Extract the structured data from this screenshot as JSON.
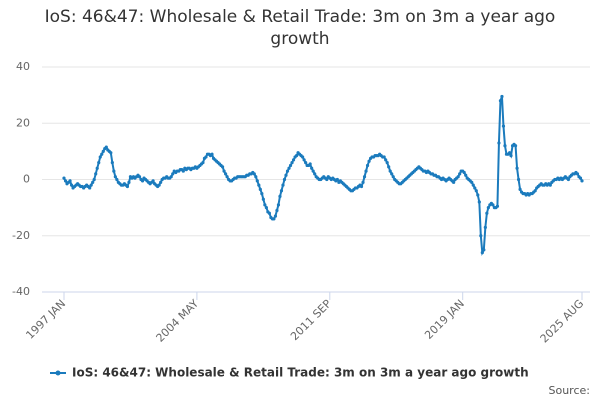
{
  "chart_data": {
    "type": "line",
    "title": "IoS: 46&47: Wholesale & Retail Trade: 3m on 3m a year ago growth",
    "categories": [
      "1997 JAN",
      null,
      null,
      null,
      null,
      null,
      null,
      null,
      null,
      null,
      null,
      null,
      null,
      null,
      null,
      null,
      null,
      null,
      null,
      null,
      null,
      null,
      null,
      null,
      null,
      null,
      null,
      null,
      null,
      null,
      null,
      null,
      null,
      null,
      null,
      null,
      null,
      null,
      null,
      null,
      null,
      null,
      null,
      null,
      null,
      null,
      null,
      null,
      null,
      null,
      null,
      null,
      null,
      null,
      null,
      null,
      null,
      null,
      null,
      null,
      null,
      null,
      null,
      null,
      null,
      null,
      null,
      null,
      null,
      null,
      null,
      null,
      null,
      null,
      null,
      null,
      null,
      null,
      null,
      null,
      null,
      null,
      null,
      null,
      null,
      null,
      null,
      null,
      "2004 MAY",
      null,
      null,
      null,
      null,
      null,
      null,
      null,
      null,
      null,
      null,
      null,
      null,
      null,
      null,
      null,
      null,
      null,
      null,
      null,
      null,
      null,
      null,
      null,
      null,
      null,
      null,
      null,
      null,
      null,
      null,
      null,
      null,
      null,
      null,
      null,
      null,
      null,
      null,
      null,
      null,
      null,
      null,
      null,
      null,
      null,
      null,
      null,
      null,
      null,
      null,
      null,
      null,
      null,
      null,
      null,
      null,
      null,
      null,
      null,
      null,
      null,
      null,
      null,
      null,
      null,
      null,
      null,
      null,
      null,
      null,
      null,
      null,
      null,
      null,
      null,
      null,
      null,
      null,
      null,
      null,
      null,
      null,
      null,
      null,
      null,
      null,
      null,
      "2011 SEP",
      null,
      null,
      null,
      null,
      null,
      null,
      null,
      null,
      null,
      null,
      null,
      null,
      null,
      null,
      null,
      null,
      null,
      null,
      null,
      null,
      null,
      null,
      null,
      null,
      null,
      null,
      null,
      null,
      null,
      null,
      null,
      null,
      null,
      null,
      null,
      null,
      null,
      null,
      null,
      null,
      null,
      null,
      null,
      null,
      null,
      null,
      null,
      null,
      null,
      null,
      null,
      null,
      null,
      null,
      null,
      null,
      null,
      null,
      null,
      null,
      null,
      null,
      null,
      null,
      null,
      null,
      null,
      null,
      null,
      null,
      null,
      null,
      null,
      null,
      null,
      null,
      null,
      null,
      null,
      null,
      null,
      null,
      null,
      null,
      null,
      null,
      null,
      "2019 JAN",
      null,
      null,
      null,
      null,
      null,
      null,
      null,
      null,
      null,
      null,
      null,
      null,
      null,
      null,
      null,
      null,
      null,
      null,
      null,
      null,
      null,
      null,
      null,
      null,
      null,
      null,
      null,
      null,
      null,
      null,
      null,
      null,
      null,
      null,
      null,
      null,
      null,
      null,
      null,
      null,
      null,
      null,
      null,
      null,
      null,
      null,
      null,
      null,
      null,
      null,
      null,
      null,
      null,
      null,
      null,
      null,
      null,
      null,
      null,
      null,
      null,
      null,
      null,
      null,
      null,
      null,
      null,
      null,
      null,
      null,
      null,
      null,
      null,
      null,
      null,
      null,
      null,
      null,
      "2025 AUG"
    ],
    "series": [
      {
        "name": "IoS: 46&47: Wholesale & Retail Trade: 3m on 3m a year ago growth",
        "color": "#1b7bbd",
        "values": [
          0.5,
          -0.5,
          -1.5,
          -1,
          -0.5,
          -2,
          -3,
          -2.5,
          -2,
          -1.5,
          -2,
          -2.5,
          -2.5,
          -3,
          -2.5,
          -2,
          -2.5,
          -3,
          -2,
          -1,
          0,
          2,
          4,
          6,
          8,
          9,
          10,
          11,
          11.5,
          10.5,
          10,
          9.5,
          6,
          3,
          1,
          0,
          -1,
          -1.5,
          -2,
          -2,
          -1.5,
          -2,
          -2.5,
          -1,
          1,
          0.5,
          1,
          0.5,
          1,
          1.5,
          1,
          0,
          -0.5,
          0.5,
          0,
          -0.5,
          -1,
          -1.5,
          -1,
          -0.5,
          -1.5,
          -2,
          -2.5,
          -2,
          -1,
          0,
          0.5,
          0.5,
          1,
          0.5,
          0.5,
          1,
          2,
          3,
          2.5,
          3,
          3,
          3.5,
          3.5,
          3,
          4,
          3.5,
          4,
          4,
          3.5,
          4,
          4,
          4.5,
          4,
          4.5,
          5,
          5.5,
          6,
          7.5,
          8,
          9,
          9,
          8.5,
          9,
          7.5,
          7,
          6.5,
          6,
          5.5,
          5,
          4.5,
          3,
          2,
          1,
          0,
          -0.5,
          -0.5,
          0,
          0.5,
          0.5,
          1,
          1,
          1,
          1,
          1,
          1,
          1.5,
          1.5,
          2,
          2,
          2.5,
          2,
          1,
          -0.5,
          -2,
          -3.5,
          -5,
          -7,
          -9,
          -10,
          -11.5,
          -12,
          -13.5,
          -14,
          -14,
          -13,
          -11,
          -9,
          -6,
          -4,
          -2,
          0,
          1.5,
          3,
          4,
          5,
          6,
          7,
          8,
          8.5,
          9.5,
          9,
          8.5,
          8,
          7,
          6,
          5,
          5,
          5.5,
          4,
          3,
          2,
          1,
          0.5,
          0,
          0,
          0.5,
          1,
          0.5,
          0,
          1,
          0.5,
          0,
          0.5,
          0,
          -0.5,
          0,
          -1,
          -0.5,
          -1,
          -1.5,
          -2,
          -2.5,
          -3,
          -3.5,
          -4,
          -4,
          -3.5,
          -3,
          -3,
          -2.5,
          -2,
          -2.5,
          -1,
          1,
          3,
          5,
          6.5,
          7.5,
          8,
          8,
          8.5,
          8.5,
          8.5,
          9,
          8.5,
          8,
          8,
          7,
          6,
          4.5,
          3,
          2,
          1,
          0,
          -0.5,
          -1,
          -1.5,
          -1.5,
          -1,
          -0.5,
          0,
          0.5,
          1,
          1.5,
          2,
          2.5,
          3,
          3.5,
          4,
          4.5,
          4,
          3.5,
          3,
          3,
          2.5,
          3,
          2.5,
          2,
          2,
          1.5,
          1.5,
          1,
          1,
          0.5,
          0,
          0.5,
          0,
          -0.5,
          0,
          0.5,
          0,
          -0.5,
          -1,
          0,
          0.5,
          1,
          2,
          3,
          3,
          2.5,
          1.5,
          0.5,
          0,
          -0.5,
          -1,
          -2,
          -3,
          -4,
          -5.5,
          -8,
          -20,
          -26,
          -25,
          -17,
          -12,
          -10,
          -9,
          -8.5,
          -9,
          -10,
          -10,
          -9.5,
          13,
          28,
          29.5,
          19,
          12,
          9,
          9,
          9.5,
          8.5,
          12,
          12.5,
          12,
          4,
          0,
          -3.5,
          -4.5,
          -5,
          -5,
          -5.5,
          -5,
          -5.5,
          -5,
          -5,
          -4.5,
          -4,
          -3,
          -2.5,
          -2,
          -1.5,
          -2,
          -2,
          -1.5,
          -2,
          -1.5,
          -2,
          -1,
          -0.5,
          0,
          0,
          0.5,
          0,
          0.5,
          0,
          0.5,
          1,
          0.5,
          0,
          1,
          1.5,
          2,
          2,
          2.5,
          2,
          1,
          0.5,
          -0.5
        ]
      }
    ],
    "ylim": [
      -40,
      40
    ],
    "yticks": [
      -40,
      -20,
      0,
      20,
      40
    ],
    "grid": true,
    "source": "Source:"
  }
}
